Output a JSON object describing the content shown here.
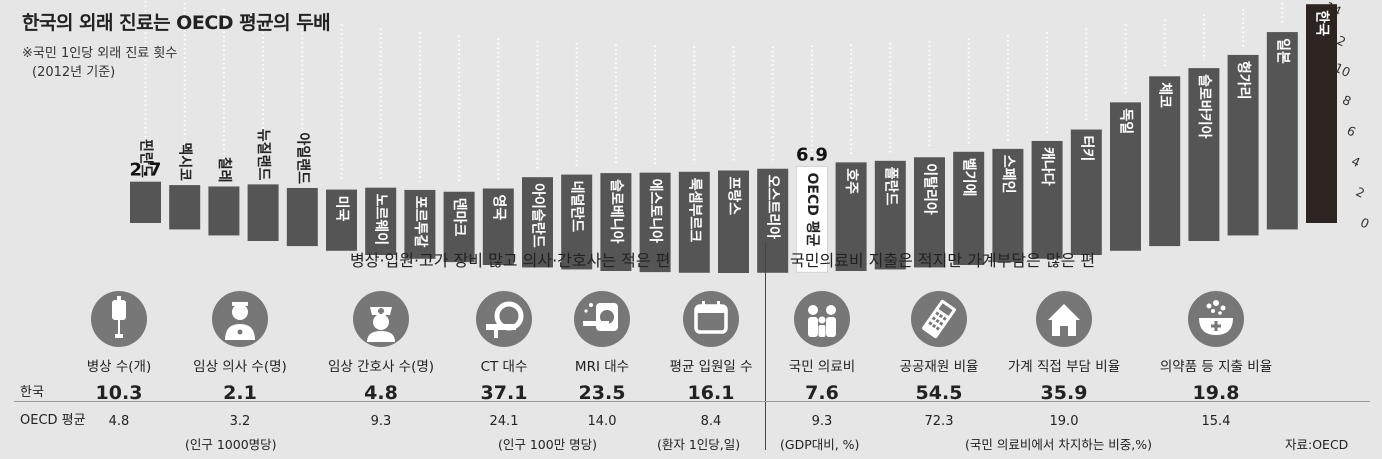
{
  "title": "한국의 외래 진료는  OECD 평균의 두배",
  "note_line1": "※국민 1인당 외래 진료 횟수",
  "note_line2": "(2012년 기준)",
  "chart_data": {
    "type": "bar",
    "title": "한국의 외래 진료는  OECD 평균의 두배",
    "subtitle": "※국민 1인당 외래 진료 횟수 (2012년 기준)",
    "categories": [
      "핀란드",
      "멕시코",
      "칠레",
      "뉴질랜드",
      "아일랜드",
      "미국",
      "노르웨이",
      "포르투갈",
      "덴마크",
      "영국",
      "아이슬란드",
      "네덜란드",
      "슬로베니아",
      "에스토니아",
      "룩셈부르크",
      "프랑스",
      "오스트리아",
      "OECD 평균",
      "호주",
      "폴란드",
      "이탈리아",
      "벨기에",
      "스페인",
      "캐나다",
      "터키",
      "독일",
      "체코",
      "슬로바키아",
      "헝가리",
      "일본",
      "한국"
    ],
    "values": [
      2.7,
      2.9,
      3.2,
      3.7,
      3.8,
      4.0,
      4.4,
      4.5,
      4.6,
      5.0,
      5.9,
      6.2,
      6.4,
      6.5,
      6.6,
      6.7,
      6.8,
      6.9,
      7.1,
      7.1,
      7.2,
      7.4,
      7.4,
      7.7,
      8.2,
      9.7,
      11.1,
      11.3,
      11.8,
      12.9,
      14.3
    ],
    "labeled_values": {
      "핀란드": "2.7",
      "OECD 평균": "6.9",
      "한국": "14.3"
    },
    "yaxis_ticks": [
      "0",
      "2",
      "4",
      "6",
      "8",
      "10",
      "12",
      "14"
    ],
    "ylim": [
      0,
      15
    ],
    "highlight": {
      "OECD 평균": "#ffffff",
      "한국": "#2b2420"
    },
    "bar_color": "#555555"
  },
  "section_left_title": "병상·입원·고가 장비 많고 의사·간호사는 적은 편",
  "section_right_title": "국민의료비 지출은 적지만 가계부담은 많은 편",
  "row_korea": "한국",
  "row_oecd": "OECD 평균",
  "indicators": [
    {
      "icon": "iv-drip-icon",
      "label": "병상 수(개)",
      "korea": "10.3",
      "oecd": "4.8"
    },
    {
      "icon": "doctor-icon",
      "label": "임상 의사 수(명)",
      "korea": "2.1",
      "oecd": "3.2"
    },
    {
      "icon": "nurse-icon",
      "label": "임상 간호사 수(명)",
      "korea": "4.8",
      "oecd": "9.3"
    },
    {
      "icon": "ct-scanner-icon",
      "label": "CT 대수",
      "korea": "37.1",
      "oecd": "24.1"
    },
    {
      "icon": "mri-scanner-icon",
      "label": "MRI 대수",
      "korea": "23.5",
      "oecd": "14.0"
    },
    {
      "icon": "calendar-icon",
      "label": "평균 입원일 수",
      "korea": "16.1",
      "oecd": "8.4"
    },
    {
      "icon": "family-icon",
      "label": "국민 의료비",
      "korea": "7.6",
      "oecd": "9.3"
    },
    {
      "icon": "calculator-icon",
      "label": "공공재원 비율",
      "korea": "54.5",
      "oecd": "72.3"
    },
    {
      "icon": "house-icon",
      "label": "가계 직접 부담 비율",
      "korea": "35.9",
      "oecd": "19.0"
    },
    {
      "icon": "mortar-pill-icon",
      "label": "의약품 등 지출 비율",
      "korea": "19.8",
      "oecd": "15.4"
    }
  ],
  "units": {
    "per_1000": "(인구 1000명당)",
    "per_million": "(인구 100만 명당)",
    "per_patient": "(환자 1인당,일)",
    "gdp": "(GDP대비, %)",
    "share": "(국민 의료비에서 차지하는 비중,%)"
  },
  "source": "자료:OECD"
}
